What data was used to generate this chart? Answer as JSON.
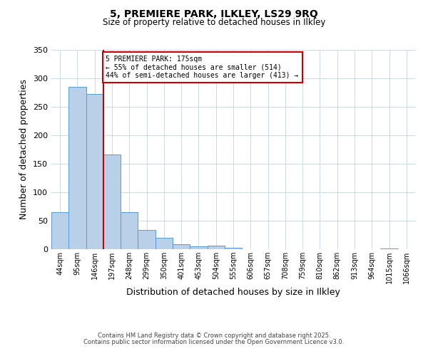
{
  "title": "5, PREMIERE PARK, ILKLEY, LS29 9RQ",
  "subtitle": "Size of property relative to detached houses in Ilkley",
  "xlabel": "Distribution of detached houses by size in Ilkley",
  "ylabel": "Number of detached properties",
  "bin_labels": [
    "44sqm",
    "95sqm",
    "146sqm",
    "197sqm",
    "248sqm",
    "299sqm",
    "350sqm",
    "401sqm",
    "453sqm",
    "504sqm",
    "555sqm",
    "606sqm",
    "657sqm",
    "708sqm",
    "759sqm",
    "810sqm",
    "862sqm",
    "913sqm",
    "964sqm",
    "1015sqm",
    "1066sqm"
  ],
  "bar_values": [
    65,
    285,
    273,
    166,
    65,
    34,
    20,
    9,
    5,
    6,
    2,
    0,
    0,
    0,
    0,
    0,
    0,
    0,
    0,
    1,
    0
  ],
  "bar_color": "#b8d0e8",
  "bar_edge_color": "#5b9bd5",
  "vline_x": 3.0,
  "vline_color": "#cc0000",
  "annotation_title": "5 PREMIERE PARK: 175sqm",
  "annotation_line1": "← 55% of detached houses are smaller (514)",
  "annotation_line2": "44% of semi-detached houses are larger (413) →",
  "annotation_box_color": "#cc0000",
  "ylim": [
    0,
    350
  ],
  "yticks": [
    0,
    50,
    100,
    150,
    200,
    250,
    300,
    350
  ],
  "footer1": "Contains HM Land Registry data © Crown copyright and database right 2025.",
  "footer2": "Contains public sector information licensed under the Open Government Licence v3.0.",
  "bg_color": "#ffffff",
  "grid_color": "#cdd9e8"
}
